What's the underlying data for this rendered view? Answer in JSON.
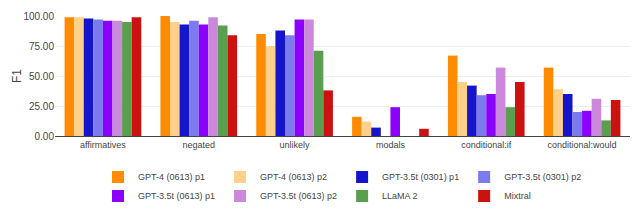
{
  "chart_data": {
    "type": "bar",
    "categories": [
      "affirmatives",
      "negated",
      "unlikely",
      "modals",
      "conditional:if",
      "conditional:would"
    ],
    "series": [
      {
        "name": "GPT-4 (0613) p1",
        "color": "#FF8C00",
        "values": [
          99.0,
          100.0,
          85.0,
          16.0,
          67.0,
          57.0
        ]
      },
      {
        "name": "GPT-4 (0613) p2",
        "color": "#FFD08A",
        "values": [
          99.0,
          95.0,
          75.0,
          12.0,
          45.0,
          39.0
        ]
      },
      {
        "name": "GPT-3.5t (0301) p1",
        "color": "#1515CC",
        "values": [
          98.0,
          93.0,
          88.0,
          7.0,
          42.0,
          35.0
        ]
      },
      {
        "name": "GPT-3.5t (0301) p2",
        "color": "#7B7BEE",
        "values": [
          97.0,
          96.0,
          84.0,
          0.0,
          34.0,
          20.0
        ]
      },
      {
        "name": "GPT-3.5t (0613) p1",
        "color": "#8B00FF",
        "values": [
          96.0,
          93.0,
          97.0,
          24.0,
          35.0,
          21.0
        ]
      },
      {
        "name": "GPT-3.5t (0613) p2",
        "color": "#CC88DD",
        "values": [
          96.0,
          99.0,
          97.0,
          0.0,
          57.0,
          31.0
        ]
      },
      {
        "name": "LLaMA 2",
        "color": "#5A9E50",
        "values": [
          95.0,
          92.0,
          71.0,
          0.0,
          24.0,
          13.0
        ]
      },
      {
        "name": "Mixtral",
        "color": "#CC1111",
        "values": [
          99.0,
          84.0,
          38.0,
          6.0,
          45.0,
          30.0
        ]
      }
    ],
    "ylabel": "F1",
    "ylim": [
      0,
      100
    ],
    "yticks": [
      {
        "value": 0,
        "label": "0.00"
      },
      {
        "value": 25,
        "label": "25.00"
      },
      {
        "value": 50,
        "label": "50.00"
      },
      {
        "value": 75,
        "label": "75.00"
      },
      {
        "value": 100,
        "label": "100.00"
      }
    ],
    "grid": true,
    "legend": "bottom"
  }
}
